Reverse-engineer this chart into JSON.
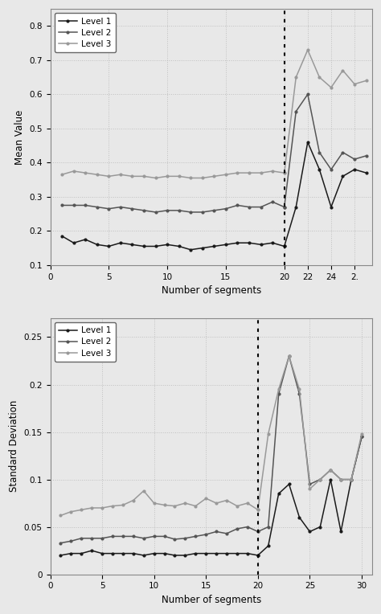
{
  "top_chart": {
    "ylabel": "Mean Value",
    "xlabel": "Number of segments",
    "ylim": [
      0.1,
      0.85
    ],
    "yticks": [
      0.1,
      0.2,
      0.3,
      0.4,
      0.5,
      0.6,
      0.7,
      0.8
    ],
    "ytick_labels": [
      "0.1",
      "0.2",
      "0.3",
      "0.4",
      "0.5",
      "0.6",
      "0.7",
      "0.8"
    ],
    "xticks": [
      0,
      5,
      10,
      15,
      20,
      22,
      24,
      26
    ],
    "xtick_labels": [
      "0",
      "5",
      "10",
      "15",
      "20",
      "22",
      "24",
      "2."
    ],
    "xlim": [
      0,
      27.5
    ],
    "vline_x": 20,
    "legend_labels": [
      "Level 1",
      "Level 2",
      "Level 3"
    ],
    "colors": [
      "#1a1a1a",
      "#555555",
      "#999999"
    ],
    "x_before": [
      1,
      2,
      3,
      4,
      5,
      6,
      7,
      8,
      9,
      10,
      11,
      12,
      13,
      14,
      15,
      16,
      17,
      18,
      19,
      20
    ],
    "level1_before": [
      0.185,
      0.165,
      0.175,
      0.16,
      0.155,
      0.165,
      0.16,
      0.155,
      0.155,
      0.16,
      0.155,
      0.145,
      0.15,
      0.155,
      0.16,
      0.165,
      0.165,
      0.16,
      0.165,
      0.155
    ],
    "level2_before": [
      0.275,
      0.275,
      0.275,
      0.27,
      0.265,
      0.27,
      0.265,
      0.26,
      0.255,
      0.26,
      0.26,
      0.255,
      0.255,
      0.26,
      0.265,
      0.275,
      0.27,
      0.27,
      0.285,
      0.27
    ],
    "level3_before": [
      0.365,
      0.375,
      0.37,
      0.365,
      0.36,
      0.365,
      0.36,
      0.36,
      0.355,
      0.36,
      0.36,
      0.355,
      0.355,
      0.36,
      0.365,
      0.37,
      0.37,
      0.37,
      0.375,
      0.37
    ],
    "x_after": [
      20,
      21,
      22,
      23,
      24,
      25,
      26,
      27
    ],
    "level1_after": [
      0.155,
      0.27,
      0.46,
      0.38,
      0.27,
      0.36,
      0.38,
      0.37
    ],
    "level2_after": [
      0.27,
      0.55,
      0.6,
      0.43,
      0.38,
      0.43,
      0.41,
      0.42
    ],
    "level3_after": [
      0.37,
      0.65,
      0.73,
      0.65,
      0.62,
      0.67,
      0.63,
      0.64
    ]
  },
  "bottom_chart": {
    "ylabel": "Standard Deviation",
    "xlabel": "Number of segments",
    "ylim": [
      0.0,
      0.27
    ],
    "yticks": [
      0.0,
      0.05,
      0.1,
      0.15,
      0.2,
      0.25
    ],
    "ytick_labels": [
      "0",
      "0.05",
      "0.1",
      "0.15",
      "0.2",
      "0.25"
    ],
    "xticks": [
      0,
      5,
      10,
      15,
      20,
      25,
      30
    ],
    "xtick_labels": [
      "0",
      "5",
      "10",
      "15",
      "20",
      "25",
      "30"
    ],
    "xlim": [
      0,
      31
    ],
    "vline_x": 20,
    "legend_labels": [
      "Level 1",
      "Level 2",
      "Level 3"
    ],
    "colors": [
      "#1a1a1a",
      "#555555",
      "#999999"
    ],
    "x_before": [
      1,
      2,
      3,
      4,
      5,
      6,
      7,
      8,
      9,
      10,
      11,
      12,
      13,
      14,
      15,
      16,
      17,
      18,
      19,
      20
    ],
    "level1_before": [
      0.02,
      0.022,
      0.022,
      0.025,
      0.022,
      0.022,
      0.022,
      0.022,
      0.02,
      0.022,
      0.022,
      0.02,
      0.02,
      0.022,
      0.022,
      0.022,
      0.022,
      0.022,
      0.022,
      0.02
    ],
    "level2_before": [
      0.033,
      0.035,
      0.038,
      0.038,
      0.038,
      0.04,
      0.04,
      0.04,
      0.038,
      0.04,
      0.04,
      0.037,
      0.038,
      0.04,
      0.042,
      0.045,
      0.043,
      0.048,
      0.05,
      0.045
    ],
    "level3_before": [
      0.062,
      0.066,
      0.068,
      0.07,
      0.07,
      0.072,
      0.073,
      0.078,
      0.088,
      0.075,
      0.073,
      0.072,
      0.075,
      0.072,
      0.08,
      0.075,
      0.078,
      0.072,
      0.075,
      0.068
    ],
    "x_after": [
      20,
      21,
      22,
      23,
      24,
      25,
      26,
      27,
      28,
      29,
      30
    ],
    "level1_after": [
      0.02,
      0.03,
      0.085,
      0.095,
      0.06,
      0.045,
      0.05,
      0.1,
      0.045,
      0.1,
      0.145
    ],
    "level2_after": [
      0.045,
      0.05,
      0.19,
      0.23,
      0.19,
      0.095,
      0.1,
      0.11,
      0.1,
      0.1,
      0.145
    ],
    "level3_after": [
      0.068,
      0.148,
      0.195,
      0.23,
      0.195,
      0.09,
      0.1,
      0.11,
      0.1,
      0.1,
      0.148
    ]
  },
  "bg_color": "#e8e8e8",
  "grid_color": "#bbbbbb",
  "fig_width": 4.74,
  "fig_height": 7.64,
  "dpi": 100
}
